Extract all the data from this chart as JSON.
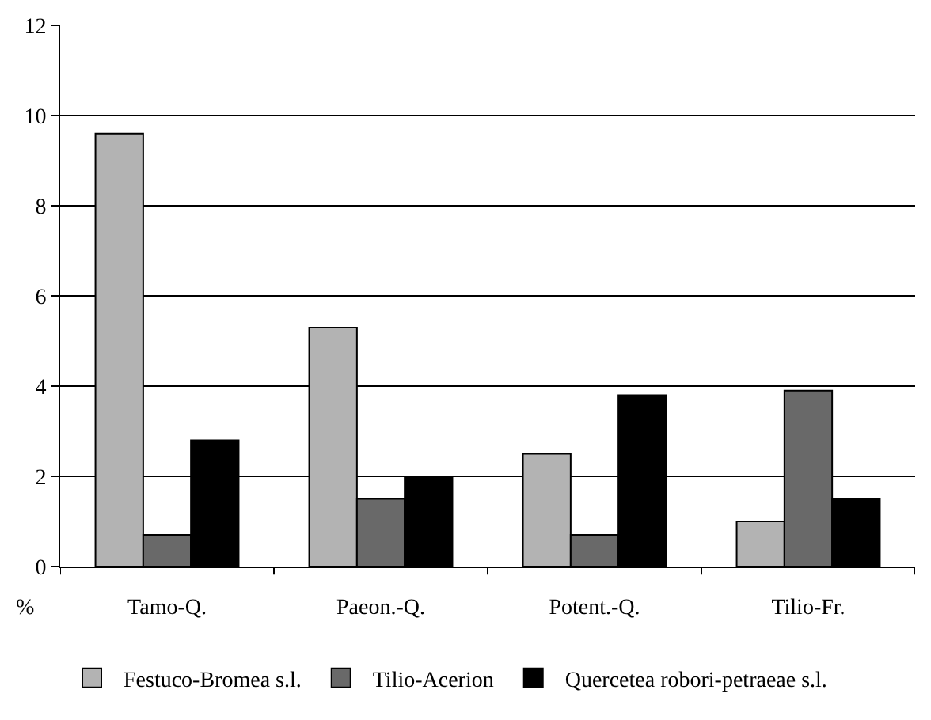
{
  "chart_data": {
    "type": "bar",
    "ylabel": "%",
    "categories": [
      "Tamo-Q.",
      "Paeon.-Q.",
      "Potent.-Q.",
      "Tilio-Fr."
    ],
    "series": [
      {
        "name": "Festuco-Bromea s.l.",
        "color": "#b3b3b3",
        "values": [
          9.6,
          5.3,
          2.5,
          1.0
        ]
      },
      {
        "name": "Tilio-Acerion",
        "color": "#696969",
        "values": [
          0.7,
          1.5,
          0.7,
          3.9
        ]
      },
      {
        "name": "Quercetea robori-petraeae s.l.",
        "color": "#000000",
        "values": [
          2.8,
          2.0,
          3.8,
          1.5
        ]
      }
    ],
    "ylim": [
      0,
      12
    ],
    "yticks": [
      0,
      2,
      4,
      6,
      8,
      10,
      12
    ],
    "grid": "y",
    "legend": "bottom"
  }
}
